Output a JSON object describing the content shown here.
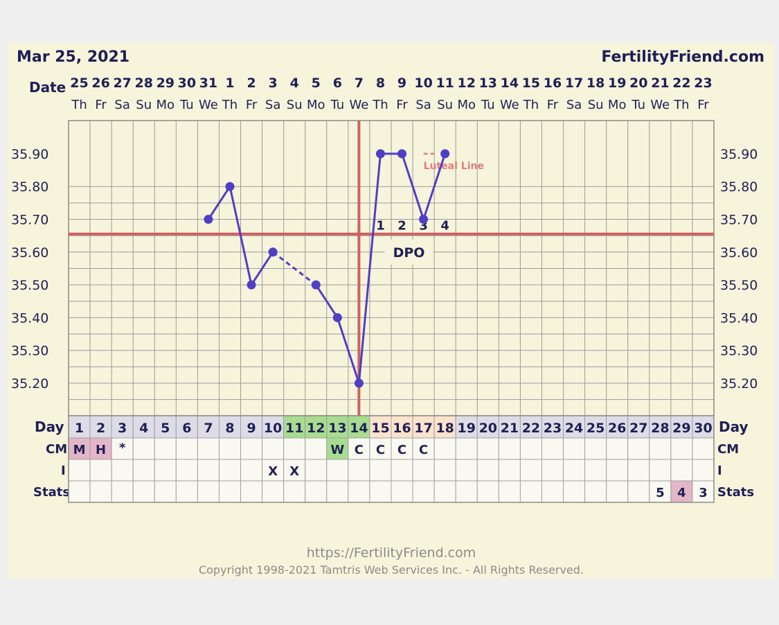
{
  "header": {
    "date": "Mar 25, 2021",
    "site": "FertilityFriend.com"
  },
  "row_labels": {
    "date": "Date",
    "day_left": "Day",
    "day_right": "Day",
    "cm": "CM",
    "intercourse": "I",
    "stats": "Stats"
  },
  "dates": [
    "25",
    "26",
    "27",
    "28",
    "29",
    "30",
    "31",
    "1",
    "2",
    "3",
    "4",
    "5",
    "6",
    "7",
    "8",
    "9",
    "10",
    "11",
    "12",
    "13",
    "14",
    "15",
    "16",
    "17",
    "18",
    "19",
    "20",
    "21",
    "22",
    "23"
  ],
  "weekdays": [
    "Th",
    "Fr",
    "Sa",
    "Su",
    "Mo",
    "Tu",
    "We",
    "Th",
    "Fr",
    "Sa",
    "Su",
    "Mo",
    "Tu",
    "We",
    "Th",
    "Fr",
    "Sa",
    "Su",
    "Mo",
    "Tu",
    "We",
    "Th",
    "Fr",
    "Sa",
    "Su",
    "Mo",
    "Tu",
    "We",
    "Th",
    "Fr"
  ],
  "days": [
    "1",
    "2",
    "3",
    "4",
    "5",
    "6",
    "7",
    "8",
    "9",
    "10",
    "11",
    "12",
    "13",
    "14",
    "15",
    "16",
    "17",
    "18",
    "19",
    "20",
    "21",
    "22",
    "23",
    "24",
    "25",
    "26",
    "27",
    "28",
    "29",
    "30"
  ],
  "cm": [
    "M",
    "H",
    "*",
    "",
    "",
    "",
    "",
    "",
    "",
    "",
    "",
    "",
    "W",
    "C",
    "C",
    "C",
    "C",
    "",
    "",
    "",
    "",
    "",
    "",
    "",
    "",
    "",
    "",
    "",
    "",
    ""
  ],
  "intercourse": [
    "",
    "",
    "",
    "",
    "",
    "",
    "",
    "",
    "",
    "X",
    "X",
    "",
    "",
    "",
    "",
    "",
    "",
    "",
    "",
    "",
    "",
    "",
    "",
    "",
    "",
    "",
    "",
    "",
    "",
    ""
  ],
  "stats": [
    "",
    "",
    "",
    "",
    "",
    "",
    "",
    "",
    "",
    "",
    "",
    "",
    "",
    "",
    "",
    "",
    "",
    "",
    "",
    "",
    "",
    "",
    "",
    "",
    "",
    "",
    "",
    "5",
    "4",
    "3"
  ],
  "colors": {
    "background": "#f7f4dc",
    "line": "#4f3fc4",
    "coverline": "#d06060",
    "fertile_day": "#a8dd90",
    "luteal_day": "#fbe3cd",
    "normal_day": "#dedce6",
    "cm_pink": "#e3b6c8",
    "cm_green": "#a8dd90",
    "stats_pink": "#e3b6c8",
    "text_dark": "#1f1f56",
    "luteal_text": "#e07c7c",
    "footer_text": "#8a8a8a"
  },
  "chart_data": {
    "type": "line",
    "title": "",
    "xlabel": "Day",
    "ylabel": "",
    "x": [
      1,
      2,
      3,
      4,
      5,
      6,
      7,
      8,
      9,
      10,
      11,
      12,
      13,
      14,
      15,
      16,
      17,
      18,
      19,
      20,
      21,
      22,
      23,
      24,
      25,
      26,
      27,
      28,
      29,
      30
    ],
    "ylim": [
      35.1,
      36.0
    ],
    "yticks": [
      "35.20",
      "35.30",
      "35.40",
      "35.50",
      "35.60",
      "35.70",
      "35.80",
      "35.90"
    ],
    "grid": true,
    "series": [
      {
        "values": [
          null,
          null,
          null,
          null,
          null,
          null,
          35.7,
          35.8,
          35.5,
          35.6,
          null,
          35.5,
          35.4,
          35.2,
          35.9,
          35.9,
          35.7,
          35.9,
          null,
          null,
          null,
          null,
          null,
          null,
          null,
          null,
          null,
          null,
          null,
          null
        ]
      }
    ],
    "interpolated_segments": [
      [
        10,
        12
      ]
    ],
    "coverline": 35.655,
    "ovulation_day": 14,
    "dpo_markers": [
      {
        "day": 15,
        "label": "1"
      },
      {
        "day": 16,
        "label": "2"
      },
      {
        "day": 17,
        "label": "3"
      },
      {
        "day": 18,
        "label": "4"
      }
    ],
    "dpo_label": "DPO",
    "luteal_line_label": "Luteal Line",
    "fertile_days": [
      11,
      12,
      13,
      14
    ],
    "luteal_days": [
      15,
      16,
      17,
      18
    ],
    "cm_highlight": {
      "pink": [
        1,
        2
      ],
      "green": [
        13
      ]
    },
    "stats_highlight": [
      29
    ]
  },
  "footer": {
    "url": "https://FertilityFriend.com",
    "copyright": "Copyright 1998-2021 Tamtris Web Services Inc. - All Rights Reserved."
  }
}
